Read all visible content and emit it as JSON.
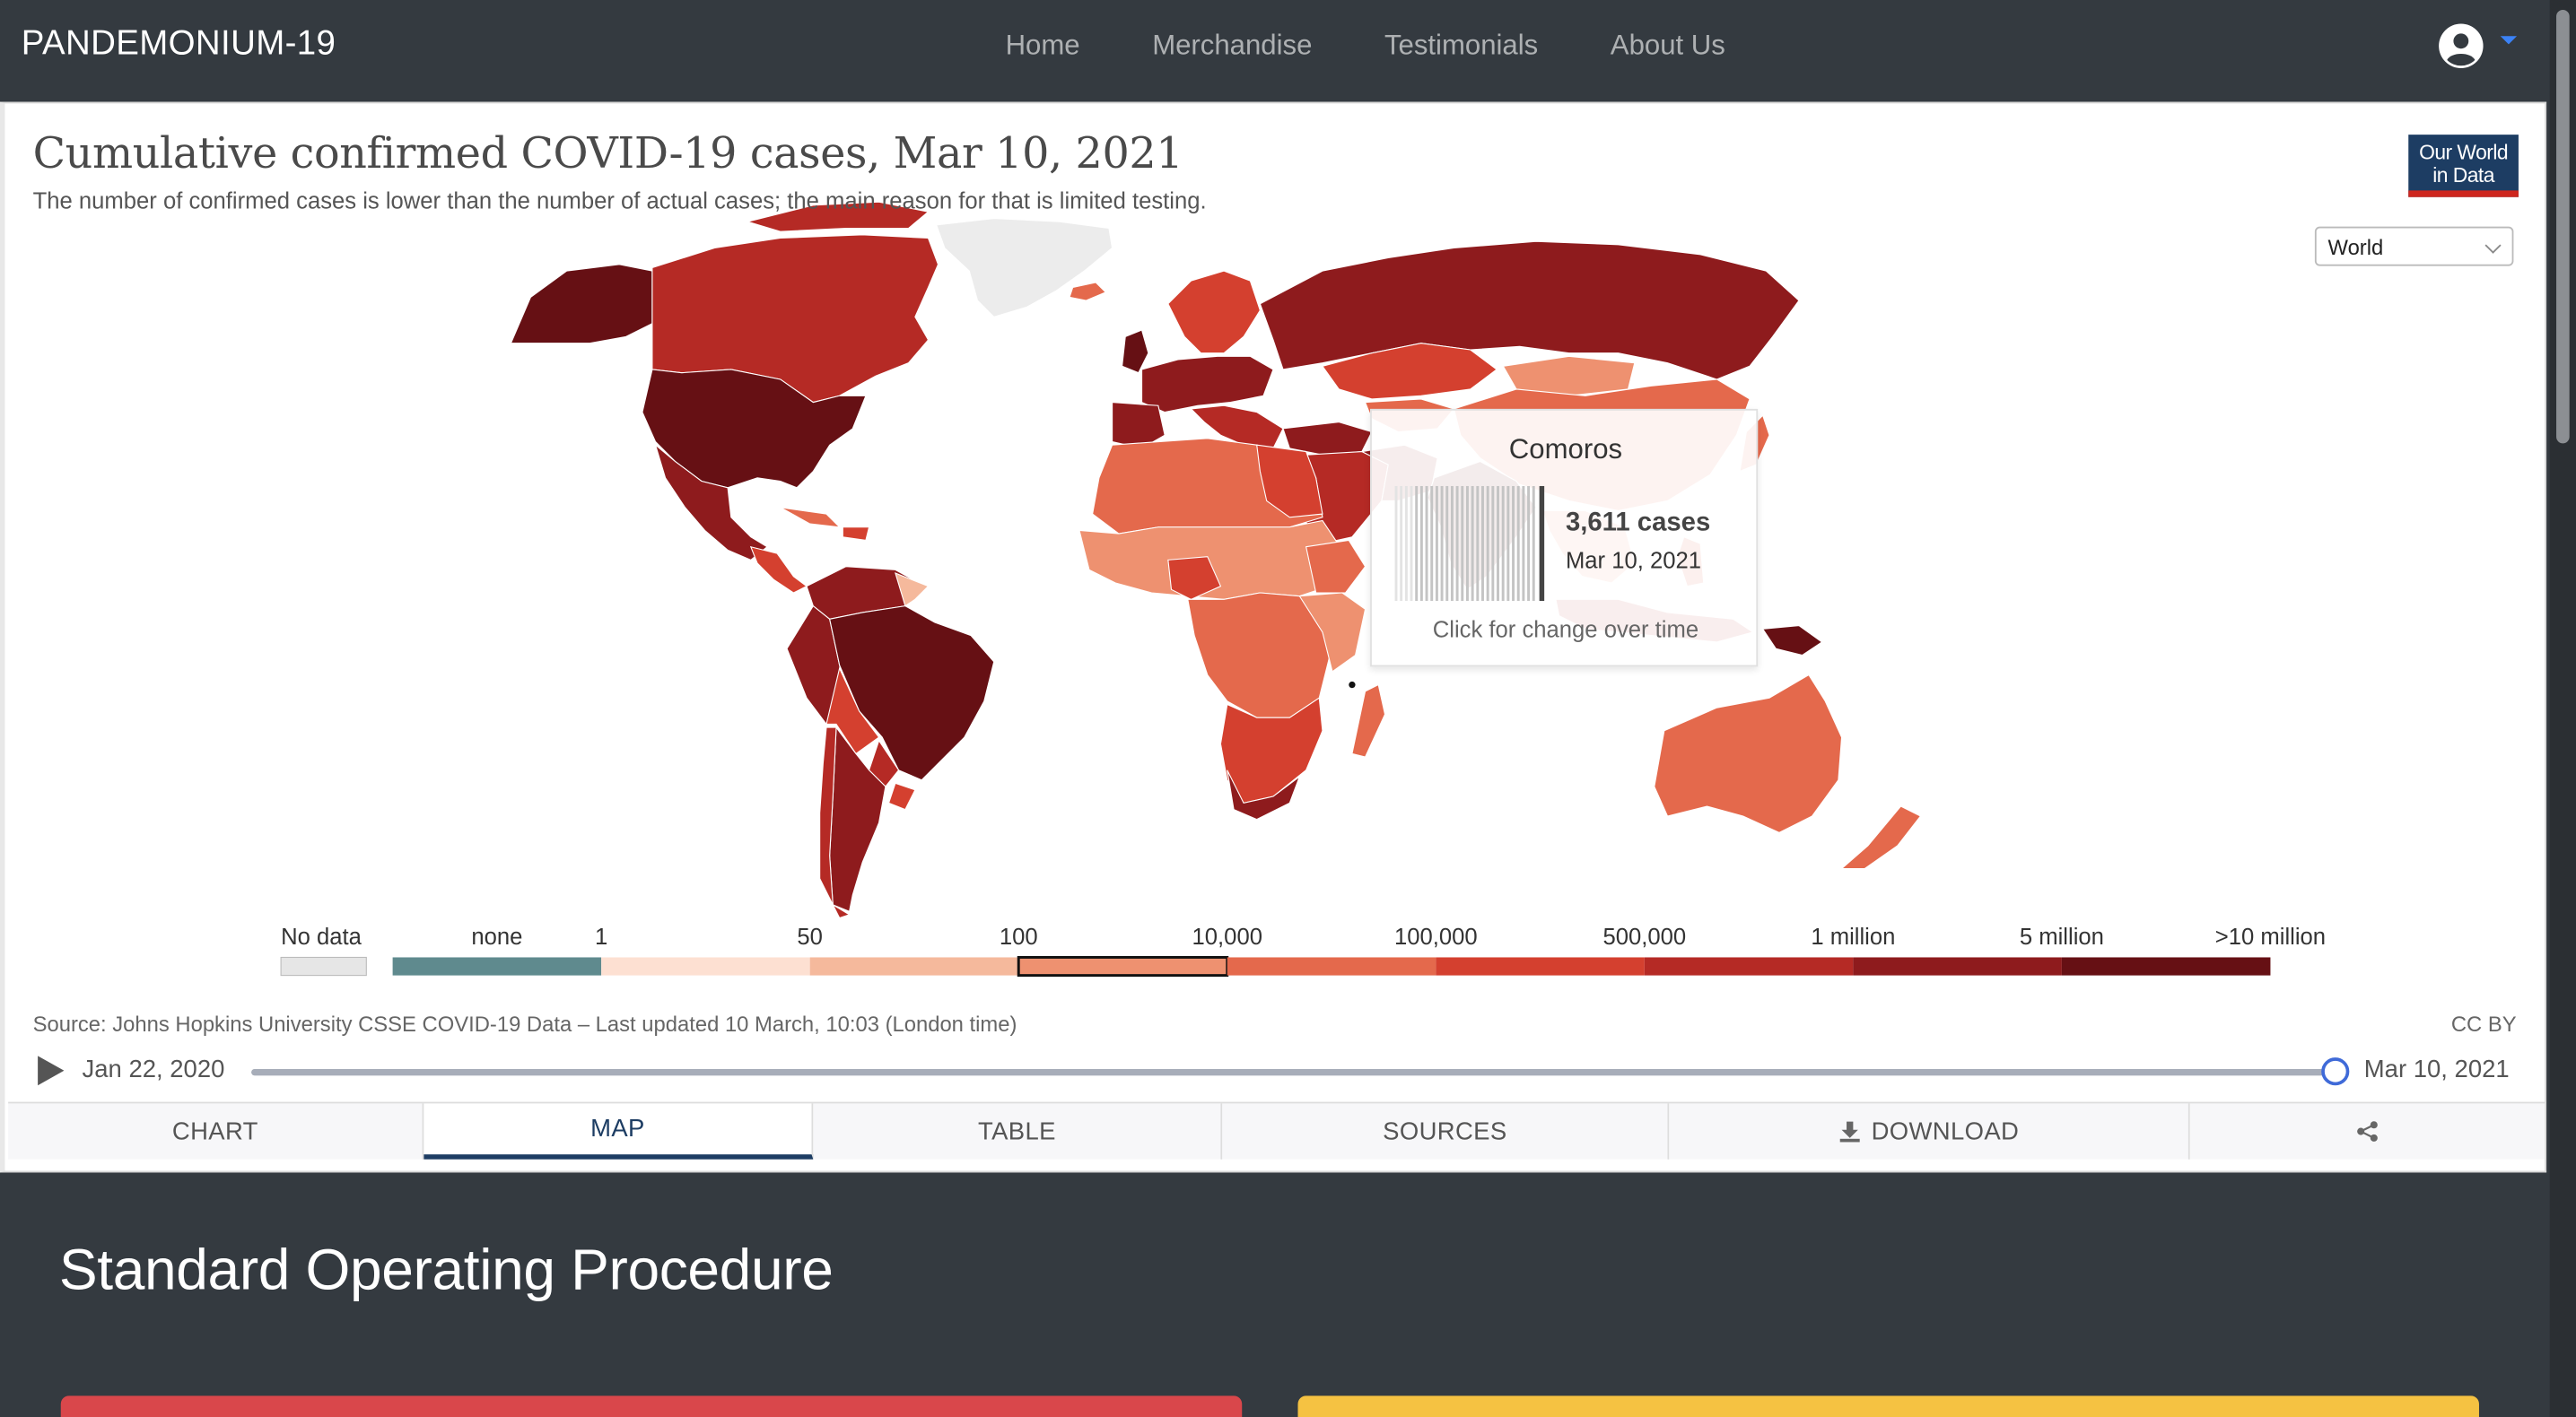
{
  "nav": {
    "brand": "PANDEMONIUM-19",
    "links": [
      "Home",
      "Merchandise",
      "Testimonials",
      "About Us"
    ],
    "user_icon": "user-circle-icon",
    "dropdown_icon": "caret-down-icon"
  },
  "grapher": {
    "title": "Cumulative confirmed COVID-19 cases, Mar 10, 2021",
    "subtitle": "The number of confirmed cases is lower than the number of actual cases; the main reason for that is limited testing.",
    "logo_line1": "Our World",
    "logo_line2": "in Data",
    "region": "World",
    "source": "Source: Johns Hopkins University CSSE COVID-19 Data – Last updated 10 March, 10:03 (London time)",
    "license": "CC BY",
    "timeline": {
      "start": "Jan 22, 2020",
      "end": "Mar 10, 2021",
      "position": 1.0
    },
    "tabs": [
      "CHART",
      "MAP",
      "TABLE",
      "SOURCES",
      "DOWNLOAD"
    ],
    "active_tab": "MAP",
    "share_icon": "share-icon",
    "download_icon": "download-icon"
  },
  "tooltip": {
    "country": "Comoros",
    "value": "3,611 cases",
    "date": "Mar 10, 2021",
    "hint": "Click for change over time"
  },
  "legend": {
    "no_data_label": "No data",
    "bins": [
      {
        "label_left": "none",
        "label_right": "1",
        "color": "#5f8a8e"
      },
      {
        "label_left": "1",
        "label_right": "50",
        "color": "#fde0d2"
      },
      {
        "label_left": "50",
        "label_right": "100",
        "color": "#f5b99c"
      },
      {
        "label_left": "100",
        "label_right": "10,000",
        "color": "#ee9170",
        "highlighted": true
      },
      {
        "label_left": "10,000",
        "label_right": "100,000",
        "color": "#e4694c"
      },
      {
        "label_left": "100,000",
        "label_right": "500,000",
        "color": "#d4402f"
      },
      {
        "label_left": "500,000",
        "label_right": "1 million",
        "color": "#b52a25"
      },
      {
        "label_left": "1 million",
        "label_right": "5 million",
        "color": "#8e1b1d"
      },
      {
        "label_left": "5 million",
        "label_right": ">10 million",
        "color": "#661014"
      }
    ],
    "tick_labels": [
      "none",
      "1",
      "50",
      "100",
      "10,000",
      "100,000",
      "500,000",
      "1 million",
      "5 million",
      ">10 million"
    ],
    "no_data_color": "#e6e6e6"
  },
  "page": {
    "section_title": "Standard Operating Procedure",
    "card_colors": [
      "#d9474b",
      "#f5c242"
    ]
  }
}
